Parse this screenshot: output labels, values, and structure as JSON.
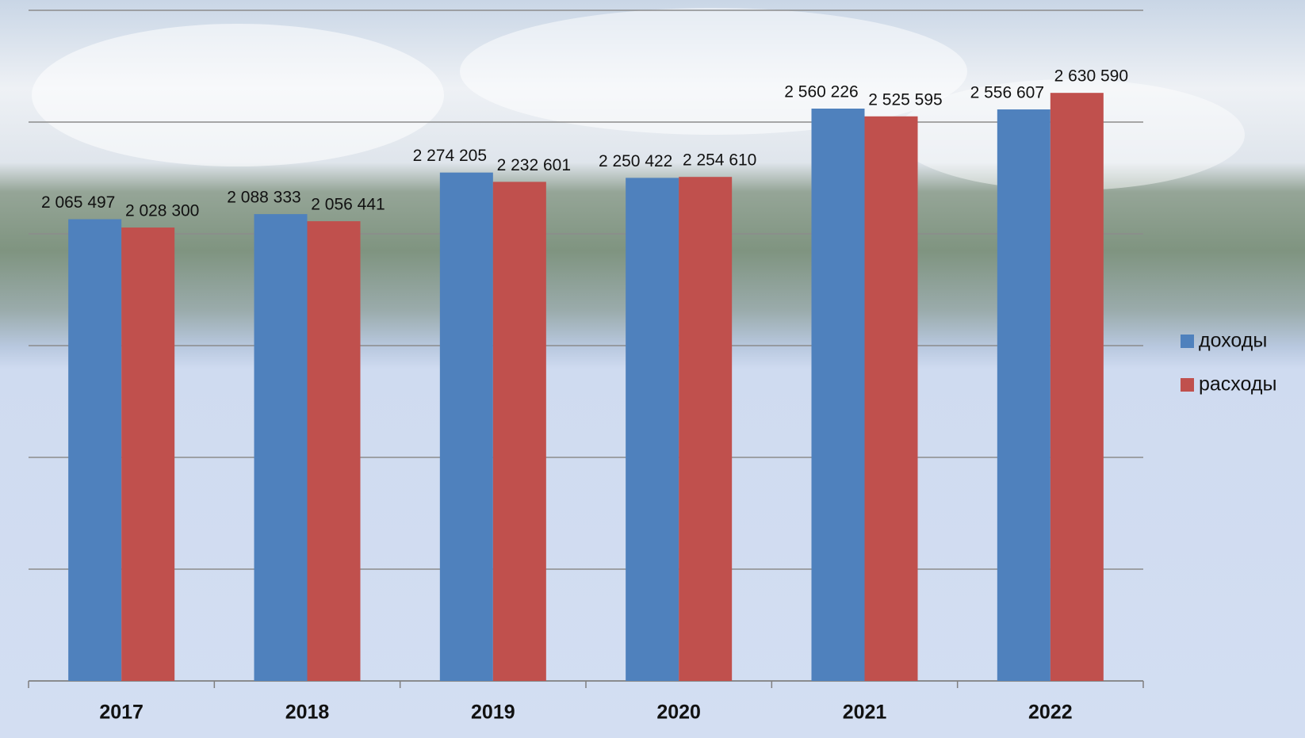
{
  "chart_data": {
    "type": "bar",
    "categories": [
      "2017",
      "2018",
      "2019",
      "2020",
      "2021",
      "2022"
    ],
    "series": [
      {
        "name": "доходы",
        "color": "#4f81bd",
        "values": [
          2065497,
          2088333,
          2274205,
          2250422,
          2560226,
          2556607
        ],
        "value_labels": [
          "2 065 497",
          "2 088 333",
          "2 274 205",
          "2 250 422",
          "2 560 226",
          "2 556 607"
        ]
      },
      {
        "name": "расходы",
        "color": "#c0504d",
        "values": [
          2028300,
          2056441,
          2232601,
          2254610,
          2525595,
          2630590
        ],
        "value_labels": [
          "2 028 300",
          "2 056 441",
          "2 232 601",
          "2 254 610",
          "2 525 595",
          "2 630 590"
        ]
      }
    ],
    "ylim": [
      0,
      3000000
    ],
    "yticks": [
      0,
      500000,
      1000000,
      1500000,
      2000000,
      2500000,
      3000000
    ],
    "grid": true,
    "legend": "right"
  }
}
